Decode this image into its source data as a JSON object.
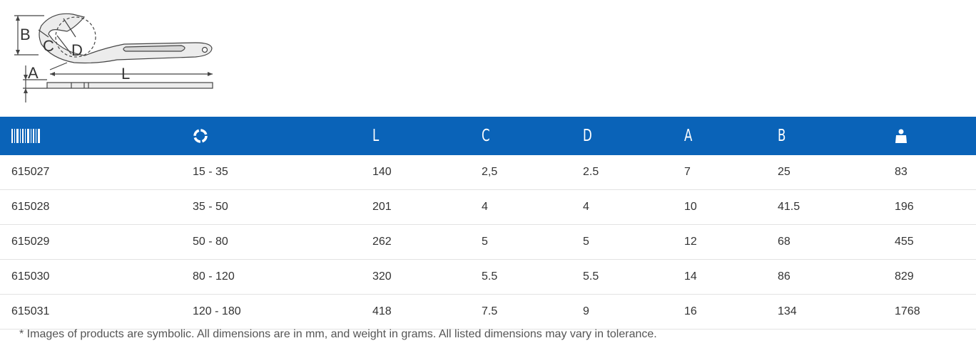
{
  "diagram": {
    "labels": {
      "B": "B",
      "C": "C",
      "D": "D",
      "A": "A",
      "L": "L"
    }
  },
  "table": {
    "columns": [
      {
        "key": "article",
        "icon": "barcode-icon",
        "label": ""
      },
      {
        "key": "range",
        "icon": "ring-icon",
        "label": ""
      },
      {
        "key": "L",
        "icon": "",
        "label": "L"
      },
      {
        "key": "C",
        "icon": "",
        "label": "C"
      },
      {
        "key": "D",
        "icon": "",
        "label": "D"
      },
      {
        "key": "A",
        "icon": "",
        "label": "A"
      },
      {
        "key": "B",
        "icon": "",
        "label": "B"
      },
      {
        "key": "weight",
        "icon": "weight-icon",
        "label": ""
      }
    ],
    "rows": [
      [
        "615027",
        "15 - 35",
        "140",
        "2,5",
        "2.5",
        "7",
        "25",
        "83"
      ],
      [
        "615028",
        "35 - 50",
        "201",
        "4",
        "4",
        "10",
        "41.5",
        "196"
      ],
      [
        "615029",
        "50 - 80",
        "262",
        "5",
        "5",
        "12",
        "68",
        "455"
      ],
      [
        "615030",
        "80 - 120",
        "320",
        "5.5",
        "5.5",
        "14",
        "86",
        "829"
      ],
      [
        "615031",
        "120 - 180",
        "418",
        "7.5",
        "9",
        "16",
        "134",
        "1768"
      ]
    ]
  },
  "colors": {
    "header_bg": "#0a63b8",
    "header_text": "#ffffff",
    "row_border": "#e3e3e3"
  },
  "footnote": "* Images of products are symbolic. All dimensions are in mm, and weight in grams. All listed dimensions may vary in tolerance."
}
